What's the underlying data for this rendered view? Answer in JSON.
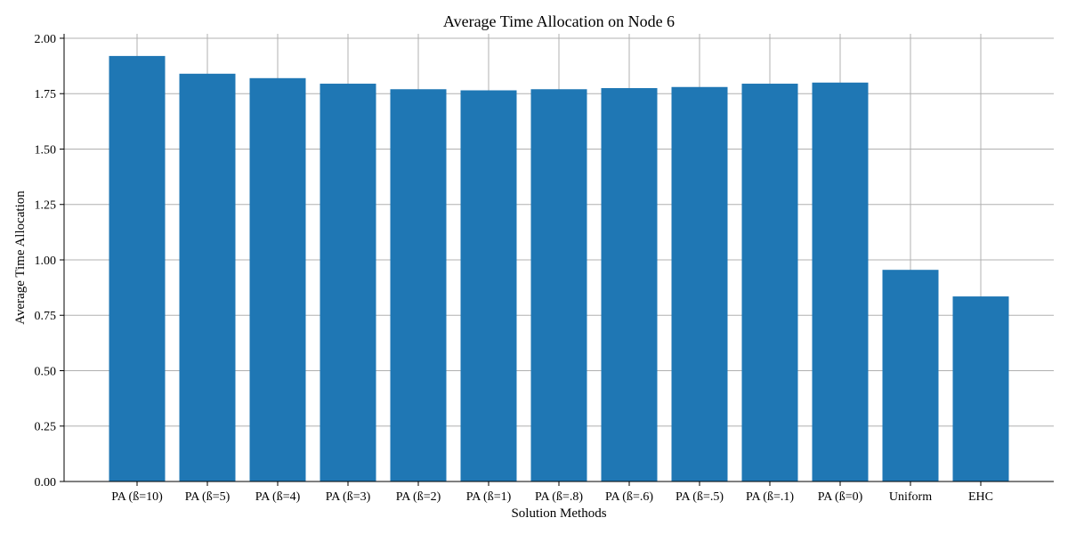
{
  "chart_data": {
    "type": "bar",
    "title": "Average Time Allocation on Node 6",
    "xlabel": "Solution Methods",
    "ylabel": "Average Time Allocation",
    "categories": [
      "PA (ß=10)",
      "PA (ß=5)",
      "PA (ß=4)",
      "PA (ß=3)",
      "PA (ß=2)",
      "PA (ß=1)",
      "PA (ß=.8)",
      "PA (ß=.6)",
      "PA (ß=.5)",
      "PA (ß=.1)",
      "PA (ß=0)",
      "Uniform",
      "EHC"
    ],
    "values": [
      1.92,
      1.84,
      1.82,
      1.795,
      1.77,
      1.765,
      1.77,
      1.775,
      1.78,
      1.795,
      1.8,
      0.955,
      0.835
    ],
    "ylim": [
      0,
      2.0
    ],
    "yticks": [
      "0.00",
      "0.25",
      "0.50",
      "0.75",
      "1.00",
      "1.25",
      "1.50",
      "1.75",
      "2.00"
    ],
    "grid": true,
    "bar_color": "#1f77b4"
  }
}
